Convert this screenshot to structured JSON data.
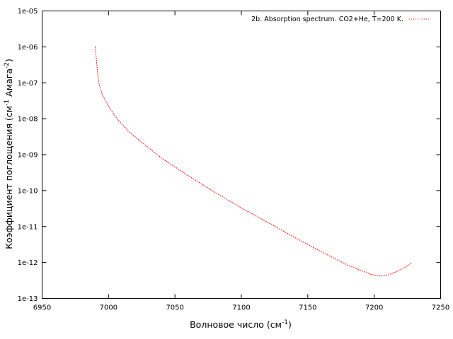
{
  "chart_data": {
    "type": "line",
    "title": "",
    "xlabel": "Волновое число (см",
    "xlabel_sup": "-1",
    "xlabel_tail": ")",
    "ylabel_parts": [
      "Коэффициент поглощения (см",
      "-1",
      " Амага",
      "-2",
      ")"
    ],
    "x_ticks": [
      6950,
      7000,
      7050,
      7100,
      7150,
      7200,
      7250
    ],
    "x_tick_labels": [
      "6950",
      "7000",
      "7050",
      "7100",
      "7150",
      "7200",
      "7250"
    ],
    "y_ticks": [
      1e-13,
      1e-12,
      1e-11,
      1e-10,
      1e-09,
      1e-08,
      1e-07,
      1e-06,
      1e-05
    ],
    "y_tick_labels": [
      "1e-13",
      "1e-12",
      "1e-11",
      "1e-10",
      "1e-09",
      "1e-08",
      "1e-07",
      "1e-06",
      "1e-05"
    ],
    "xlim": [
      6950,
      7250
    ],
    "ylim": [
      1e-13,
      1e-05
    ],
    "y_scale": "log",
    "grid": false,
    "legend_position": "top-right",
    "series": [
      {
        "name": "2b. Absorption spectrum. CO2+He, T=200 K.",
        "color": "#ff0000",
        "line_style": "dotted",
        "x": [
          6990,
          6991,
          6992,
          6993,
          6995,
          6998,
          7002,
          7008,
          7015,
          7025,
          7040,
          7060,
          7080,
          7100,
          7120,
          7140,
          7160,
          7180,
          7190,
          7198,
          7203,
          7206,
          7210,
          7215,
          7220,
          7225,
          7228
        ],
        "y": [
          1e-06,
          4e-07,
          1.6e-07,
          9e-08,
          5e-08,
          3e-08,
          1.7e-08,
          8.5e-09,
          4.5e-09,
          2.2e-09,
          8e-10,
          2.6e-10,
          9e-11,
          3.3e-11,
          1.3e-11,
          5e-12,
          2e-12,
          8.5e-13,
          6e-13,
          4.6e-13,
          4.25e-13,
          4.2e-13,
          4.4e-13,
          5.2e-13,
          6.4e-13,
          8e-13,
          9.5e-13
        ]
      }
    ]
  }
}
